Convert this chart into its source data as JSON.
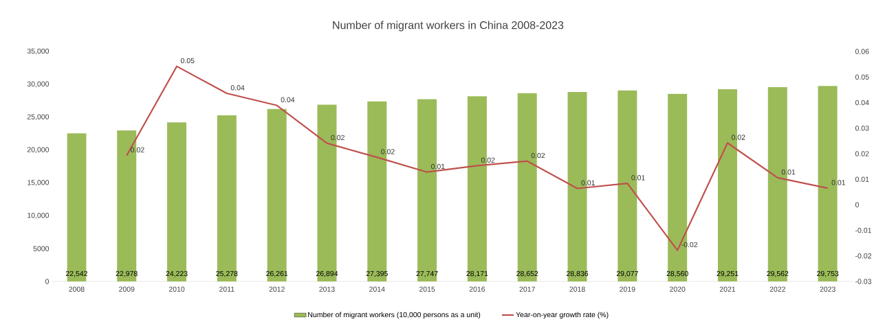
{
  "chart_data": {
    "type": "bar",
    "title": "Number of migrant workers in China 2008-2023",
    "categories": [
      "2008",
      "2009",
      "2010",
      "2011",
      "2012",
      "2013",
      "2014",
      "2015",
      "2016",
      "2017",
      "2018",
      "2019",
      "2020",
      "2021",
      "2022",
      "2023"
    ],
    "series": [
      {
        "name": "Number of migrant workers (10,000 persons as a unit)",
        "color": "#9bbb59",
        "values": [
          22542,
          22978,
          24223,
          25278,
          26261,
          26894,
          27395,
          27747,
          28171,
          28652,
          28836,
          29077,
          28560,
          29251,
          29562,
          29753
        ],
        "value_labels": [
          "22,542",
          "22,978",
          "24,223",
          "25,278",
          "26,261",
          "26,894",
          "27,395",
          "27,747",
          "28,171",
          "28,652",
          "28,836",
          "29,077",
          "28,560",
          "29,251",
          "29,562",
          "29,753"
        ]
      },
      {
        "name": "Year-on-year growth rate (%)",
        "type": "line",
        "axis": "y2",
        "color": "#c0504d",
        "values": [
          null,
          0.0193,
          0.0542,
          0.0436,
          0.0389,
          0.0241,
          0.0186,
          0.0128,
          0.0153,
          0.0171,
          0.0064,
          0.0084,
          -0.0178,
          0.0242,
          0.0106,
          0.0065
        ],
        "value_labels": [
          null,
          "0.02",
          "0.05",
          "0.04",
          "0.04",
          "0.02",
          "0.02",
          "0.01",
          "0.02",
          "0.02",
          "0.01",
          "0.01",
          "-0.02",
          "0.02",
          "0.01",
          "0.01"
        ]
      }
    ],
    "ylim": [
      0,
      35000
    ],
    "yticks": [
      {
        "value": 0,
        "label": "0"
      },
      {
        "value": 5000,
        "label": "5000"
      },
      {
        "value": 10000,
        "label": "10,000"
      },
      {
        "value": 15000,
        "label": "15,000"
      },
      {
        "value": 20000,
        "label": "20,000"
      },
      {
        "value": 25000,
        "label": "25,000"
      },
      {
        "value": 30000,
        "label": "30,000"
      },
      {
        "value": 35000,
        "label": "35,000"
      }
    ],
    "y2lim": [
      -0.03,
      0.06
    ],
    "y2ticks": [
      -0.03,
      -0.02,
      -0.01,
      0,
      0.01,
      0.02,
      0.03,
      0.04,
      0.05,
      0.06
    ],
    "legend": "bottom"
  }
}
